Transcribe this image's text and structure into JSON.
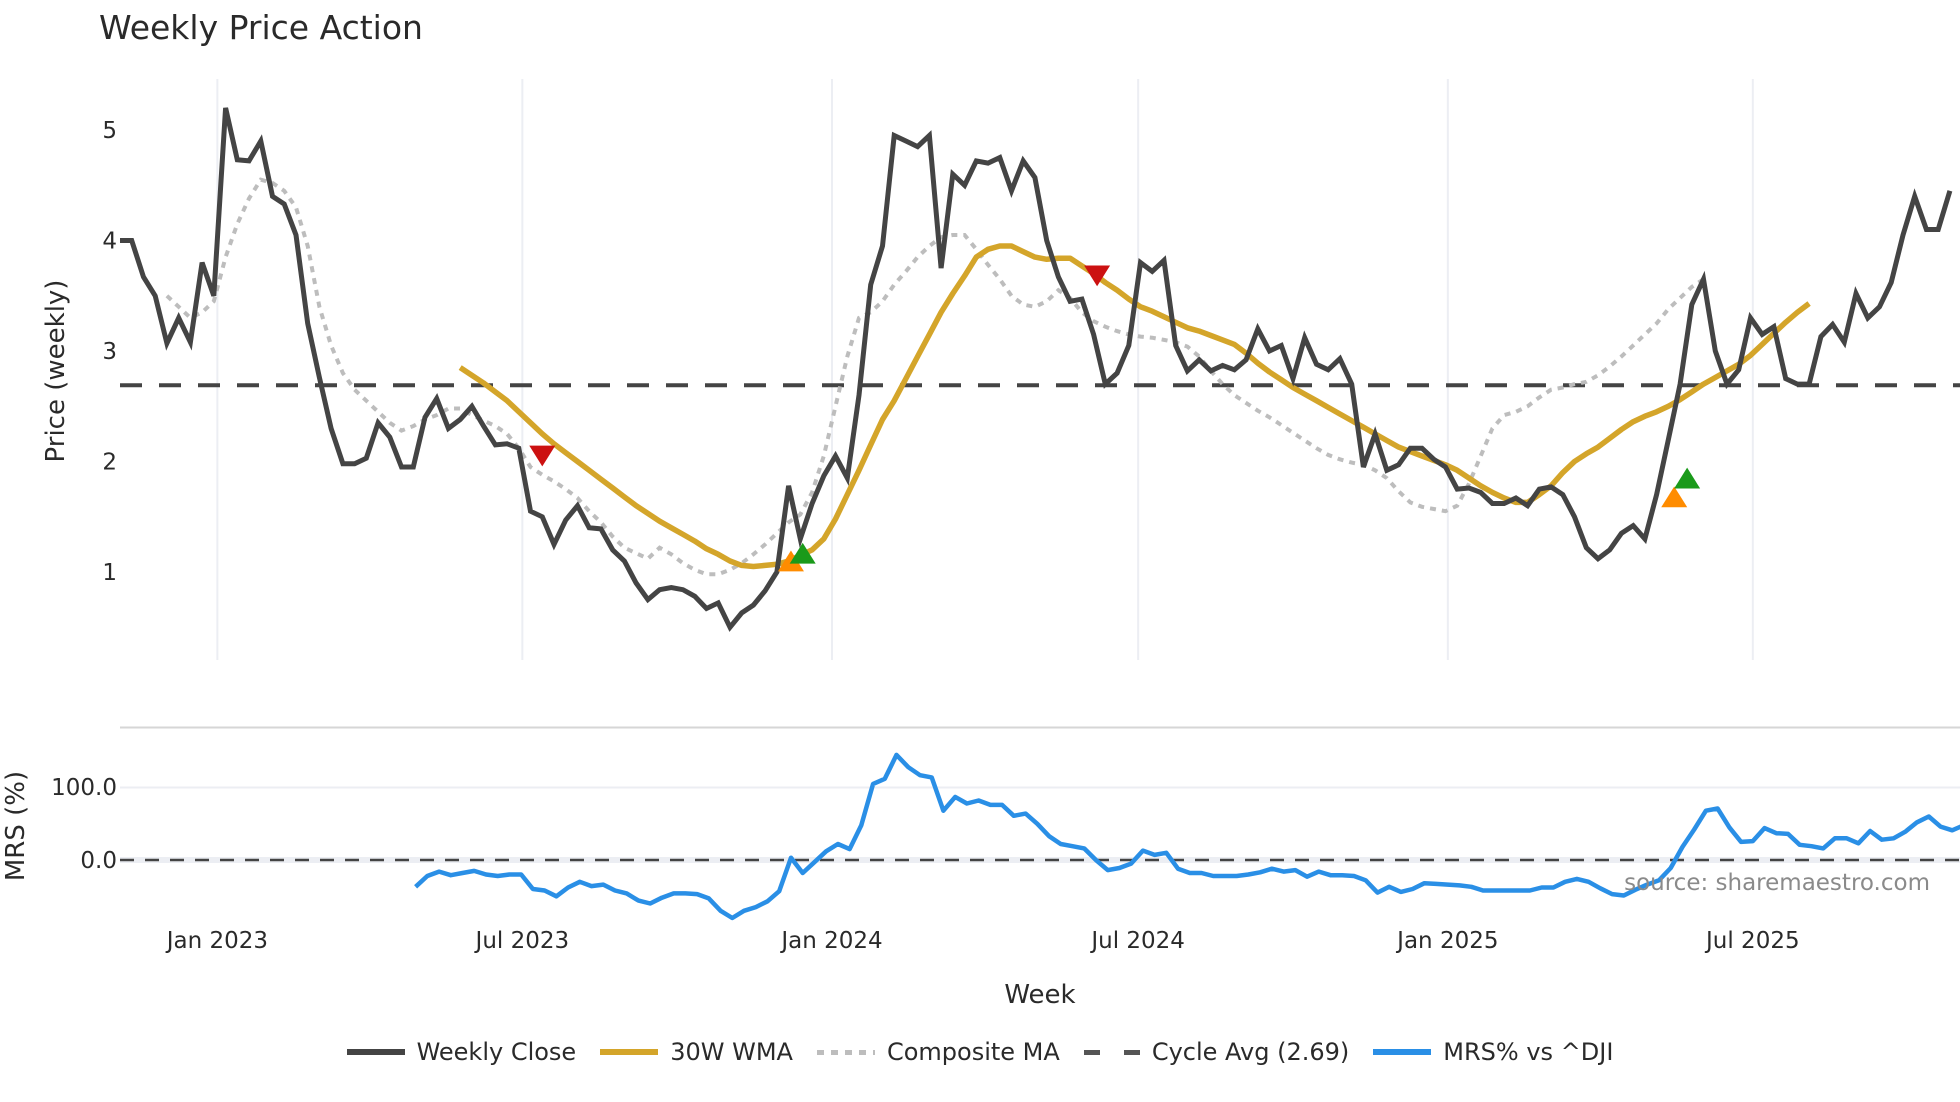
{
  "title": "Weekly Price Action",
  "source_note": "source: sharemaestro.com",
  "legend": [
    {
      "label": "Weekly Close",
      "color": "#444444",
      "style": "solid"
    },
    {
      "label": "30W WMA",
      "color": "#d4a52a",
      "style": "solid"
    },
    {
      "label": "Composite MA",
      "color": "#bdbdbd",
      "style": "dotted"
    },
    {
      "label": "Cycle Avg (2.69)",
      "color": "#555555",
      "style": "dashed"
    },
    {
      "label": "MRS% vs ^DJI",
      "color": "#2a8fe6",
      "style": "solid"
    }
  ],
  "chart_data": [
    {
      "type": "line",
      "title": "Weekly Price Action",
      "xlabel": "Week",
      "ylabel": "Price (weekly)",
      "ylim": [
        0.3,
        5.4
      ],
      "yticks": [
        1,
        2,
        3,
        4,
        5
      ],
      "xticks": [
        "Jan 2023",
        "Jul 2023",
        "Jan 2024",
        "Jul 2024",
        "Jan 2025",
        "Jul 2025"
      ],
      "xtick_week_index": [
        8.3,
        34.3,
        60.7,
        86.8,
        113.2,
        139.2
      ],
      "cycle_avg": 2.69,
      "series": [
        {
          "name": "Weekly Close",
          "start_week_index": 0,
          "values": [
            4.0,
            4.0,
            3.67,
            3.5,
            3.07,
            3.3,
            3.08,
            3.8,
            3.5,
            5.2,
            4.73,
            4.72,
            4.9,
            4.4,
            4.33,
            4.05,
            3.25,
            2.76,
            2.3,
            1.98,
            1.98,
            2.03,
            2.35,
            2.22,
            1.95,
            1.95,
            2.4,
            2.57,
            2.3,
            2.38,
            2.5,
            2.32,
            2.15,
            2.16,
            2.12,
            1.55,
            1.5,
            1.25,
            1.47,
            1.6,
            1.4,
            1.39,
            1.2,
            1.1,
            0.9,
            0.75,
            0.84,
            0.86,
            0.84,
            0.78,
            0.67,
            0.72,
            0.5,
            0.63,
            0.7,
            0.83,
            1.0,
            1.78,
            1.3,
            1.62,
            1.87,
            2.05,
            1.85,
            2.6,
            3.6,
            3.95,
            4.95,
            4.9,
            4.85,
            4.95,
            3.75,
            4.6,
            4.5,
            4.72,
            4.7,
            4.75,
            4.45,
            4.72,
            4.57,
            4.0,
            3.67,
            3.45,
            3.47,
            3.15,
            2.7,
            2.8,
            3.05,
            3.8,
            3.72,
            3.82,
            3.05,
            2.82,
            2.92,
            2.82,
            2.87,
            2.83,
            2.92,
            3.2,
            3.0,
            3.05,
            2.75,
            3.12,
            2.88,
            2.83,
            2.93,
            2.7,
            1.95,
            2.25,
            1.92,
            1.97,
            2.12,
            2.12,
            2.02,
            1.95,
            1.75,
            1.76,
            1.72,
            1.62,
            1.62,
            1.67,
            1.6,
            1.75,
            1.77,
            1.7,
            1.5,
            1.22,
            1.12,
            1.2,
            1.35,
            1.42,
            1.3,
            1.7,
            2.2,
            2.7,
            3.42,
            3.65,
            3.0,
            2.7,
            2.83,
            3.3,
            3.15,
            3.22,
            2.75,
            2.7,
            2.7,
            3.13,
            3.24,
            3.08,
            3.52,
            3.3,
            3.4,
            3.62,
            4.05,
            4.4,
            4.1,
            4.1,
            4.45
          ]
        },
        {
          "name": "30W WMA",
          "start_week_index": 29,
          "values": [
            2.85,
            2.78,
            2.71,
            2.63,
            2.55,
            2.45,
            2.35,
            2.25,
            2.16,
            2.08,
            2.0,
            1.92,
            1.84,
            1.76,
            1.68,
            1.6,
            1.53,
            1.46,
            1.4,
            1.34,
            1.28,
            1.21,
            1.16,
            1.1,
            1.06,
            1.05,
            1.06,
            1.07,
            1.1,
            1.15,
            1.2,
            1.3,
            1.48,
            1.7,
            1.92,
            2.15,
            2.38,
            2.55,
            2.75,
            2.95,
            3.15,
            3.35,
            3.52,
            3.68,
            3.85,
            3.92,
            3.95,
            3.95,
            3.9,
            3.85,
            3.83,
            3.84,
            3.84,
            3.77,
            3.7,
            3.62,
            3.55,
            3.47,
            3.4,
            3.36,
            3.31,
            3.26,
            3.21,
            3.18,
            3.14,
            3.1,
            3.06,
            2.98,
            2.89,
            2.81,
            2.74,
            2.67,
            2.61,
            2.55,
            2.49,
            2.43,
            2.37,
            2.31,
            2.25,
            2.19,
            2.13,
            2.09,
            2.05,
            2.01,
            1.97,
            1.92,
            1.85,
            1.78,
            1.72,
            1.67,
            1.63,
            1.63,
            1.7,
            1.78,
            1.9,
            2.0,
            2.07,
            2.13,
            2.21,
            2.29,
            2.36,
            2.41,
            2.45,
            2.5,
            2.56,
            2.63,
            2.7,
            2.76,
            2.82,
            2.88,
            2.96,
            3.06,
            3.16,
            3.26,
            3.35,
            3.43
          ]
        },
        {
          "name": "Composite MA",
          "start_week_index": 4,
          "values": [
            3.5,
            3.4,
            3.3,
            3.35,
            3.45,
            3.85,
            4.15,
            4.38,
            4.55,
            4.52,
            4.45,
            4.3,
            3.95,
            3.4,
            3.05,
            2.8,
            2.65,
            2.55,
            2.45,
            2.35,
            2.28,
            2.32,
            2.38,
            2.42,
            2.48,
            2.48,
            2.42,
            2.37,
            2.32,
            2.25,
            2.12,
            1.95,
            1.88,
            1.82,
            1.75,
            1.67,
            1.55,
            1.45,
            1.32,
            1.22,
            1.17,
            1.12,
            1.22,
            1.16,
            1.08,
            1.02,
            0.98,
            0.98,
            1.02,
            1.08,
            1.16,
            1.25,
            1.35,
            1.45,
            1.52,
            1.72,
            2.05,
            2.5,
            2.95,
            3.3,
            3.35,
            3.45,
            3.6,
            3.72,
            3.85,
            3.95,
            4.03,
            4.05,
            4.05,
            3.92,
            3.78,
            3.65,
            3.5,
            3.42,
            3.4,
            3.45,
            3.55,
            3.48,
            3.35,
            3.27,
            3.22,
            3.18,
            3.15,
            3.13,
            3.12,
            3.1,
            3.08,
            3.04,
            2.95,
            2.82,
            2.7,
            2.6,
            2.53,
            2.46,
            2.4,
            2.33,
            2.26,
            2.19,
            2.12,
            2.06,
            2.02,
            1.99,
            1.97,
            1.92,
            1.85,
            1.73,
            1.63,
            1.59,
            1.57,
            1.55,
            1.6,
            1.8,
            2.05,
            2.3,
            2.42,
            2.45,
            2.5,
            2.58,
            2.65,
            2.67,
            2.7,
            2.72,
            2.78,
            2.86,
            2.95,
            3.05,
            3.15,
            3.25,
            3.38,
            3.48,
            3.58,
            3.65
          ]
        }
      ],
      "markers": [
        {
          "type": "sell",
          "shape": "triangle-down",
          "color": "#cc1111",
          "week_index": 36,
          "value": 2.05
        },
        {
          "type": "buy-wma",
          "shape": "triangle-up",
          "color": "#ff8c00",
          "week_index": 57.2,
          "value": 1.1
        },
        {
          "type": "buy-composite",
          "shape": "triangle-up",
          "color": "#1a9a1a",
          "week_index": 58.2,
          "value": 1.17
        },
        {
          "type": "sell",
          "shape": "triangle-down",
          "color": "#cc1111",
          "week_index": 83.3,
          "value": 3.68
        },
        {
          "type": "buy-wma",
          "shape": "triangle-up",
          "color": "#ff8c00",
          "week_index": 132.5,
          "value": 1.68
        },
        {
          "type": "buy-composite",
          "shape": "triangle-up",
          "color": "#1a9a1a",
          "week_index": 133.6,
          "value": 1.85
        }
      ]
    },
    {
      "type": "line",
      "title": "",
      "xlabel": "Week",
      "ylabel": "MRS (%)",
      "ylim": [
        -65,
        180
      ],
      "yticks": [
        0.0,
        100.0
      ],
      "ytick_labels": [
        "0.0",
        "100.0"
      ],
      "zero_line": "dashed",
      "series": [
        {
          "name": "MRS% vs ^DJI",
          "start_week_index": 25.2,
          "values": [
            -37,
            -22,
            -16,
            -21,
            -18,
            -15,
            -20,
            -22,
            -20,
            -20,
            -40,
            -42,
            -50,
            -38,
            -30,
            -36,
            -34,
            -42,
            -46,
            -56,
            -60,
            -52,
            -46,
            -46,
            -47,
            -53,
            -70,
            -80,
            -70,
            -65,
            -57,
            -43,
            3,
            -18,
            -3,
            12,
            22,
            15,
            48,
            105,
            112,
            145,
            128,
            117,
            114,
            68,
            87,
            78,
            82,
            76,
            76,
            61,
            64,
            50,
            33,
            22,
            19,
            16,
            0,
            -14,
            -11,
            -5,
            13,
            7,
            10,
            -12,
            -18,
            -18,
            -22,
            -22,
            -22,
            -20,
            -17,
            -12,
            -16,
            -14,
            -23,
            -16,
            -21,
            -21,
            -22,
            -28,
            -45,
            -37,
            -44,
            -40,
            -32,
            -33,
            -34,
            -35,
            -37,
            -42,
            -42,
            -42,
            -42,
            -42,
            -38,
            -38,
            -30,
            -26,
            -30,
            -39,
            -47,
            -49,
            -41,
            -34,
            -28,
            -11,
            18,
            42,
            68,
            71,
            45,
            25,
            26,
            44,
            37,
            36,
            21,
            19,
            16,
            30,
            30,
            23,
            40,
            28,
            30,
            39,
            52,
            60,
            46,
            41,
            48
          ]
        }
      ]
    }
  ],
  "axes": {
    "price": {
      "ylabel": "Price (weekly)",
      "yticks": [
        "1",
        "2",
        "3",
        "4",
        "5"
      ]
    },
    "mrs": {
      "ylabel": "MRS (%)",
      "yticks": [
        "100.0",
        "0.0"
      ]
    },
    "x": {
      "label": "Week",
      "ticks": [
        "Jan 2023",
        "Jul 2023",
        "Jan 2024",
        "Jul 2024",
        "Jan 2025",
        "Jul 2025"
      ]
    }
  },
  "colors": {
    "close": "#444444",
    "wma": "#d4a52a",
    "composite": "#bdbdbd",
    "cycle": "#444444",
    "mrs": "#2a8fe6",
    "grid": "#eceef3",
    "sell": "#cc1111",
    "buy_wma": "#ff8c00",
    "buy_comp": "#1a9a1a"
  }
}
